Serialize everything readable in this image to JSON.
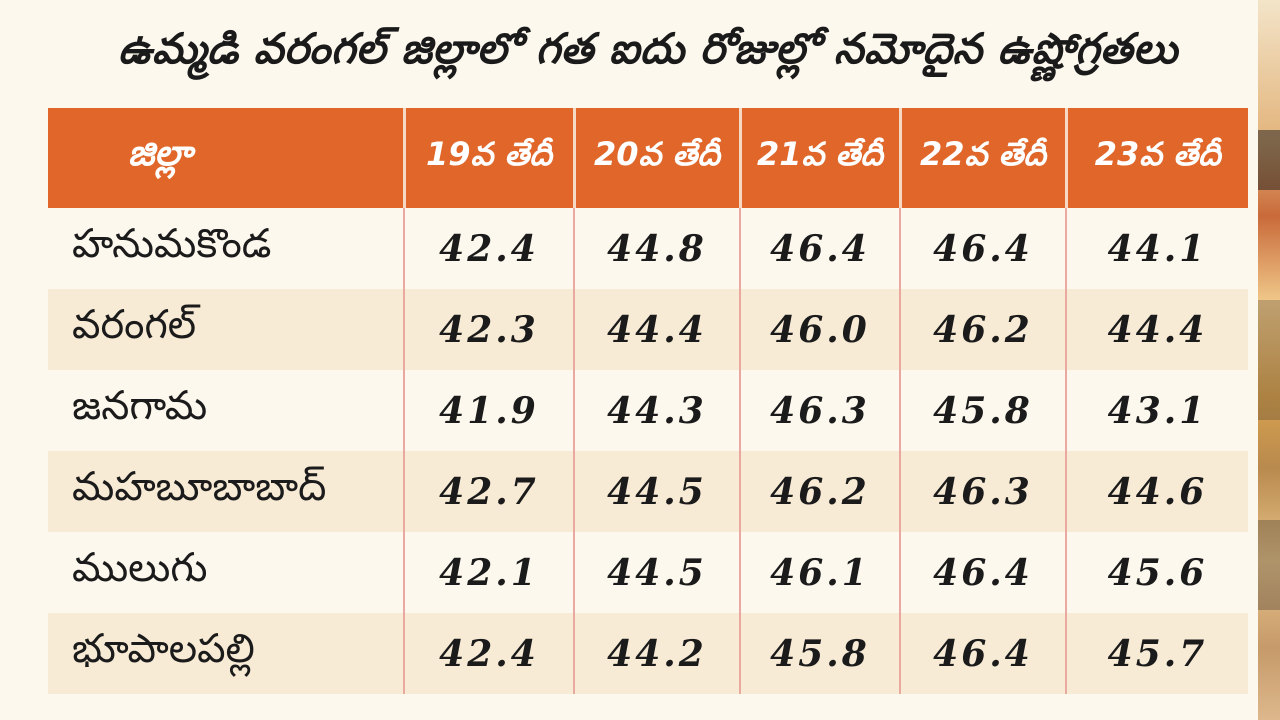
{
  "title": "ఉమ్మడి వరంగల్ జిల్లాలో గత ఐదు రోజుల్లో నమోదైన ఉష్ణోగ్రతలు",
  "table": {
    "headers": [
      "జిల్లా",
      "19వ తేదీ",
      "20వ తేదీ",
      "21వ తేదీ",
      "22వ తేదీ",
      "23వ తేదీ"
    ],
    "rows": [
      {
        "district": "హనుమకొండ",
        "values": [
          "42.4",
          "44.8",
          "46.4",
          "46.4",
          "44.1"
        ]
      },
      {
        "district": "వరంగల్",
        "values": [
          "42.3",
          "44.4",
          "46.0",
          "46.2",
          "44.4"
        ]
      },
      {
        "district": "జనగామ",
        "values": [
          "41.9",
          "44.3",
          "46.3",
          "45.8",
          "43.1"
        ]
      },
      {
        "district": "మహబూబాబాద్",
        "values": [
          "42.7",
          "44.5",
          "46.2",
          "46.3",
          "44.6"
        ]
      },
      {
        "district": "ములుగు",
        "values": [
          "42.1",
          "44.5",
          "46.1",
          "46.4",
          "45.6"
        ]
      },
      {
        "district": "భూపాలపల్లి",
        "values": [
          "42.4",
          "44.2",
          "45.8",
          "46.4",
          "45.7"
        ]
      }
    ]
  },
  "colors": {
    "header_bg": "#e0662a",
    "page_bg": "#fdf8ee",
    "row_alt_bg": "#f8ebd6",
    "divider": "#e9a9a0"
  }
}
